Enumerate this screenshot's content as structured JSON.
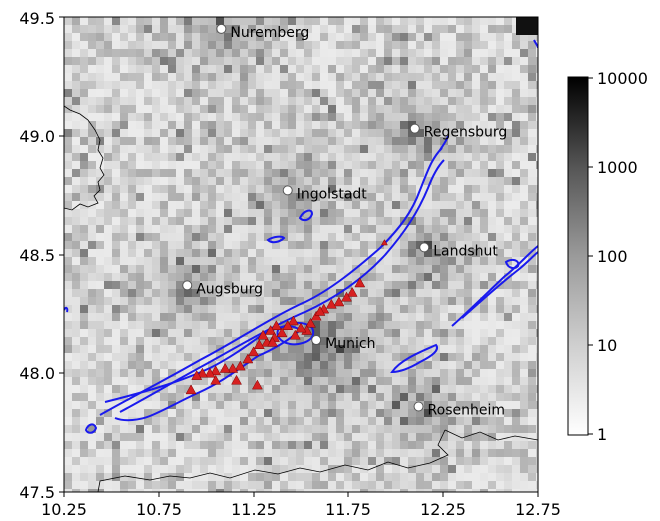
{
  "map": {
    "x_ticks": [
      "10.25",
      "10.75",
      "11.25",
      "11.75",
      "12.25",
      "12.75"
    ],
    "y_ticks": [
      "47.5",
      "48.0",
      "48.5",
      "49.0",
      "49.5"
    ],
    "xlim": [
      10.25,
      12.75
    ],
    "ylim": [
      47.5,
      49.5
    ],
    "background_scale": "log",
    "colormap": "Greys",
    "cities": [
      {
        "name": "Nuremberg",
        "lon": 11.08,
        "lat": 49.45
      },
      {
        "name": "Regensburg",
        "lon": 12.1,
        "lat": 49.03
      },
      {
        "name": "Ingolstadt",
        "lon": 11.43,
        "lat": 48.77
      },
      {
        "name": "Landshut",
        "lon": 12.15,
        "lat": 48.53
      },
      {
        "name": "Augsburg",
        "lon": 10.9,
        "lat": 48.37
      },
      {
        "name": "Munich",
        "lon": 11.58,
        "lat": 48.14
      },
      {
        "name": "Rosenheim",
        "lon": 12.12,
        "lat": 47.86
      }
    ],
    "triangle_color": "#d62020",
    "contour_color": "#1a1aee",
    "triangles": [
      [
        11.94,
        48.55
      ],
      [
        11.81,
        48.38
      ],
      [
        11.77,
        48.34
      ],
      [
        11.74,
        48.32
      ],
      [
        11.7,
        48.3
      ],
      [
        11.66,
        48.29
      ],
      [
        11.62,
        48.27
      ],
      [
        11.58,
        48.24
      ],
      [
        11.55,
        48.21
      ],
      [
        11.53,
        48.18
      ],
      [
        11.5,
        48.19
      ],
      [
        11.46,
        48.22
      ],
      [
        11.43,
        48.2
      ],
      [
        11.4,
        48.17
      ],
      [
        11.37,
        48.2
      ],
      [
        11.34,
        48.18
      ],
      [
        11.36,
        48.15
      ],
      [
        11.32,
        48.13
      ],
      [
        11.3,
        48.16
      ],
      [
        11.28,
        48.12
      ],
      [
        11.25,
        48.09
      ],
      [
        11.22,
        48.06
      ],
      [
        11.18,
        48.03
      ],
      [
        11.14,
        48.02
      ],
      [
        11.1,
        48.02
      ],
      [
        11.05,
        48.01
      ],
      [
        11.02,
        48.0
      ],
      [
        10.98,
        48.0
      ],
      [
        10.95,
        47.99
      ],
      [
        10.92,
        47.93
      ],
      [
        11.05,
        47.97
      ],
      [
        11.16,
        47.97
      ],
      [
        11.27,
        47.95
      ],
      [
        11.35,
        48.13
      ],
      [
        11.47,
        48.16
      ],
      [
        11.6,
        48.26
      ]
    ]
  },
  "colorbar": {
    "scale": "log",
    "ticks": [
      "10000",
      "1000",
      "100",
      "10",
      "1"
    ]
  }
}
